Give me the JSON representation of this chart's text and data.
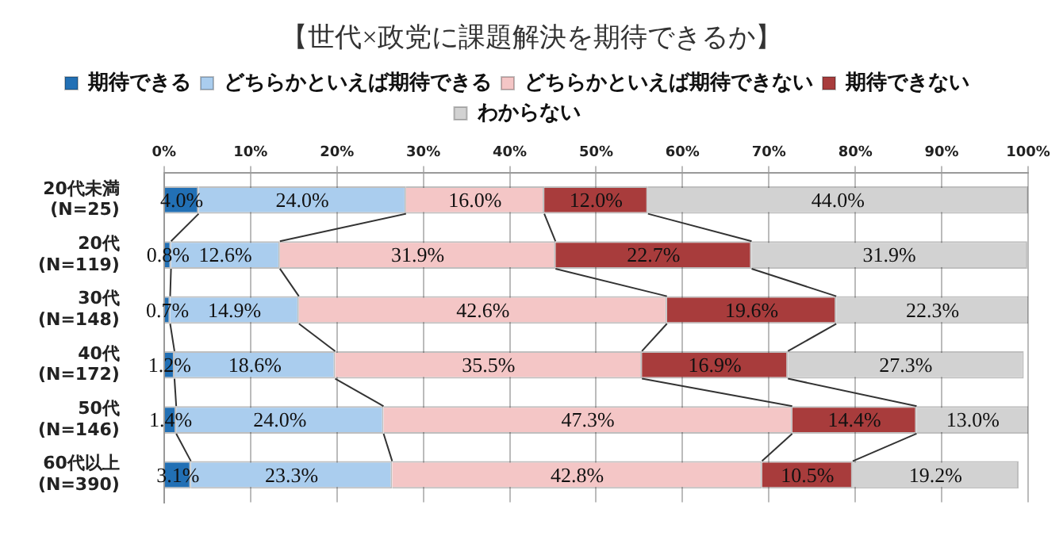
{
  "chart_data": {
    "type": "bar",
    "orientation": "horizontal",
    "stacked": true,
    "title": "【世代×政党に課題解決を期待できるか】",
    "categories": [
      "20代未満\n(N=25)",
      "20代\n(N=119)",
      "30代\n(N=148)",
      "40代\n(N=172)",
      "50代\n(N=146)",
      "60代以上\n(N=390)"
    ],
    "series": [
      {
        "name": "期待できる",
        "color": "#2270b5",
        "values": [
          4.0,
          0.8,
          0.7,
          1.2,
          1.4,
          3.1
        ],
        "value_labels": [
          "4.0%",
          "0.8%",
          "0.7%",
          "1.2%",
          "1.4%",
          "3.1%"
        ]
      },
      {
        "name": "どちらかといえば期待できる",
        "color": "#aacdee",
        "values": [
          24.0,
          12.6,
          14.9,
          18.6,
          24.0,
          23.3
        ],
        "value_labels": [
          "24.0%",
          "12.6%",
          "14.9%",
          "18.6%",
          "24.0%",
          "23.3%"
        ]
      },
      {
        "name": "どちらかといえば期待できない",
        "color": "#f4c6c6",
        "values": [
          16.0,
          31.9,
          42.6,
          35.5,
          47.3,
          42.8
        ],
        "value_labels": [
          "16.0%",
          "31.9%",
          "42.6%",
          "35.5%",
          "47.3%",
          "42.8%"
        ]
      },
      {
        "name": "期待できない",
        "color": "#a83c3c",
        "values": [
          12.0,
          22.7,
          19.6,
          16.9,
          14.4,
          10.5
        ],
        "value_labels": [
          "12.0%",
          "22.7%",
          "19.6%",
          "16.9%",
          "14.4%",
          "10.5%"
        ]
      },
      {
        "name": "わからない",
        "color": "#d2d2d2",
        "values": [
          44.0,
          31.9,
          22.3,
          27.3,
          13.0,
          19.2
        ],
        "value_labels": [
          "44.0%",
          "31.9%",
          "22.3%",
          "27.3%",
          "13.0%",
          "19.2%"
        ]
      }
    ],
    "xlim": [
      0,
      100
    ],
    "xticks": [
      {
        "value": 0,
        "label": "0%"
      },
      {
        "value": 10,
        "label": "10%"
      },
      {
        "value": 20,
        "label": "20%"
      },
      {
        "value": 30,
        "label": "30%"
      },
      {
        "value": 40,
        "label": "40%"
      },
      {
        "value": 50,
        "label": "50%"
      },
      {
        "value": 60,
        "label": "60%"
      },
      {
        "value": 70,
        "label": "70%"
      },
      {
        "value": 80,
        "label": "80%"
      },
      {
        "value": 90,
        "label": "90%"
      },
      {
        "value": 100,
        "label": "100%"
      }
    ],
    "grid": "x",
    "legend": "top"
  }
}
